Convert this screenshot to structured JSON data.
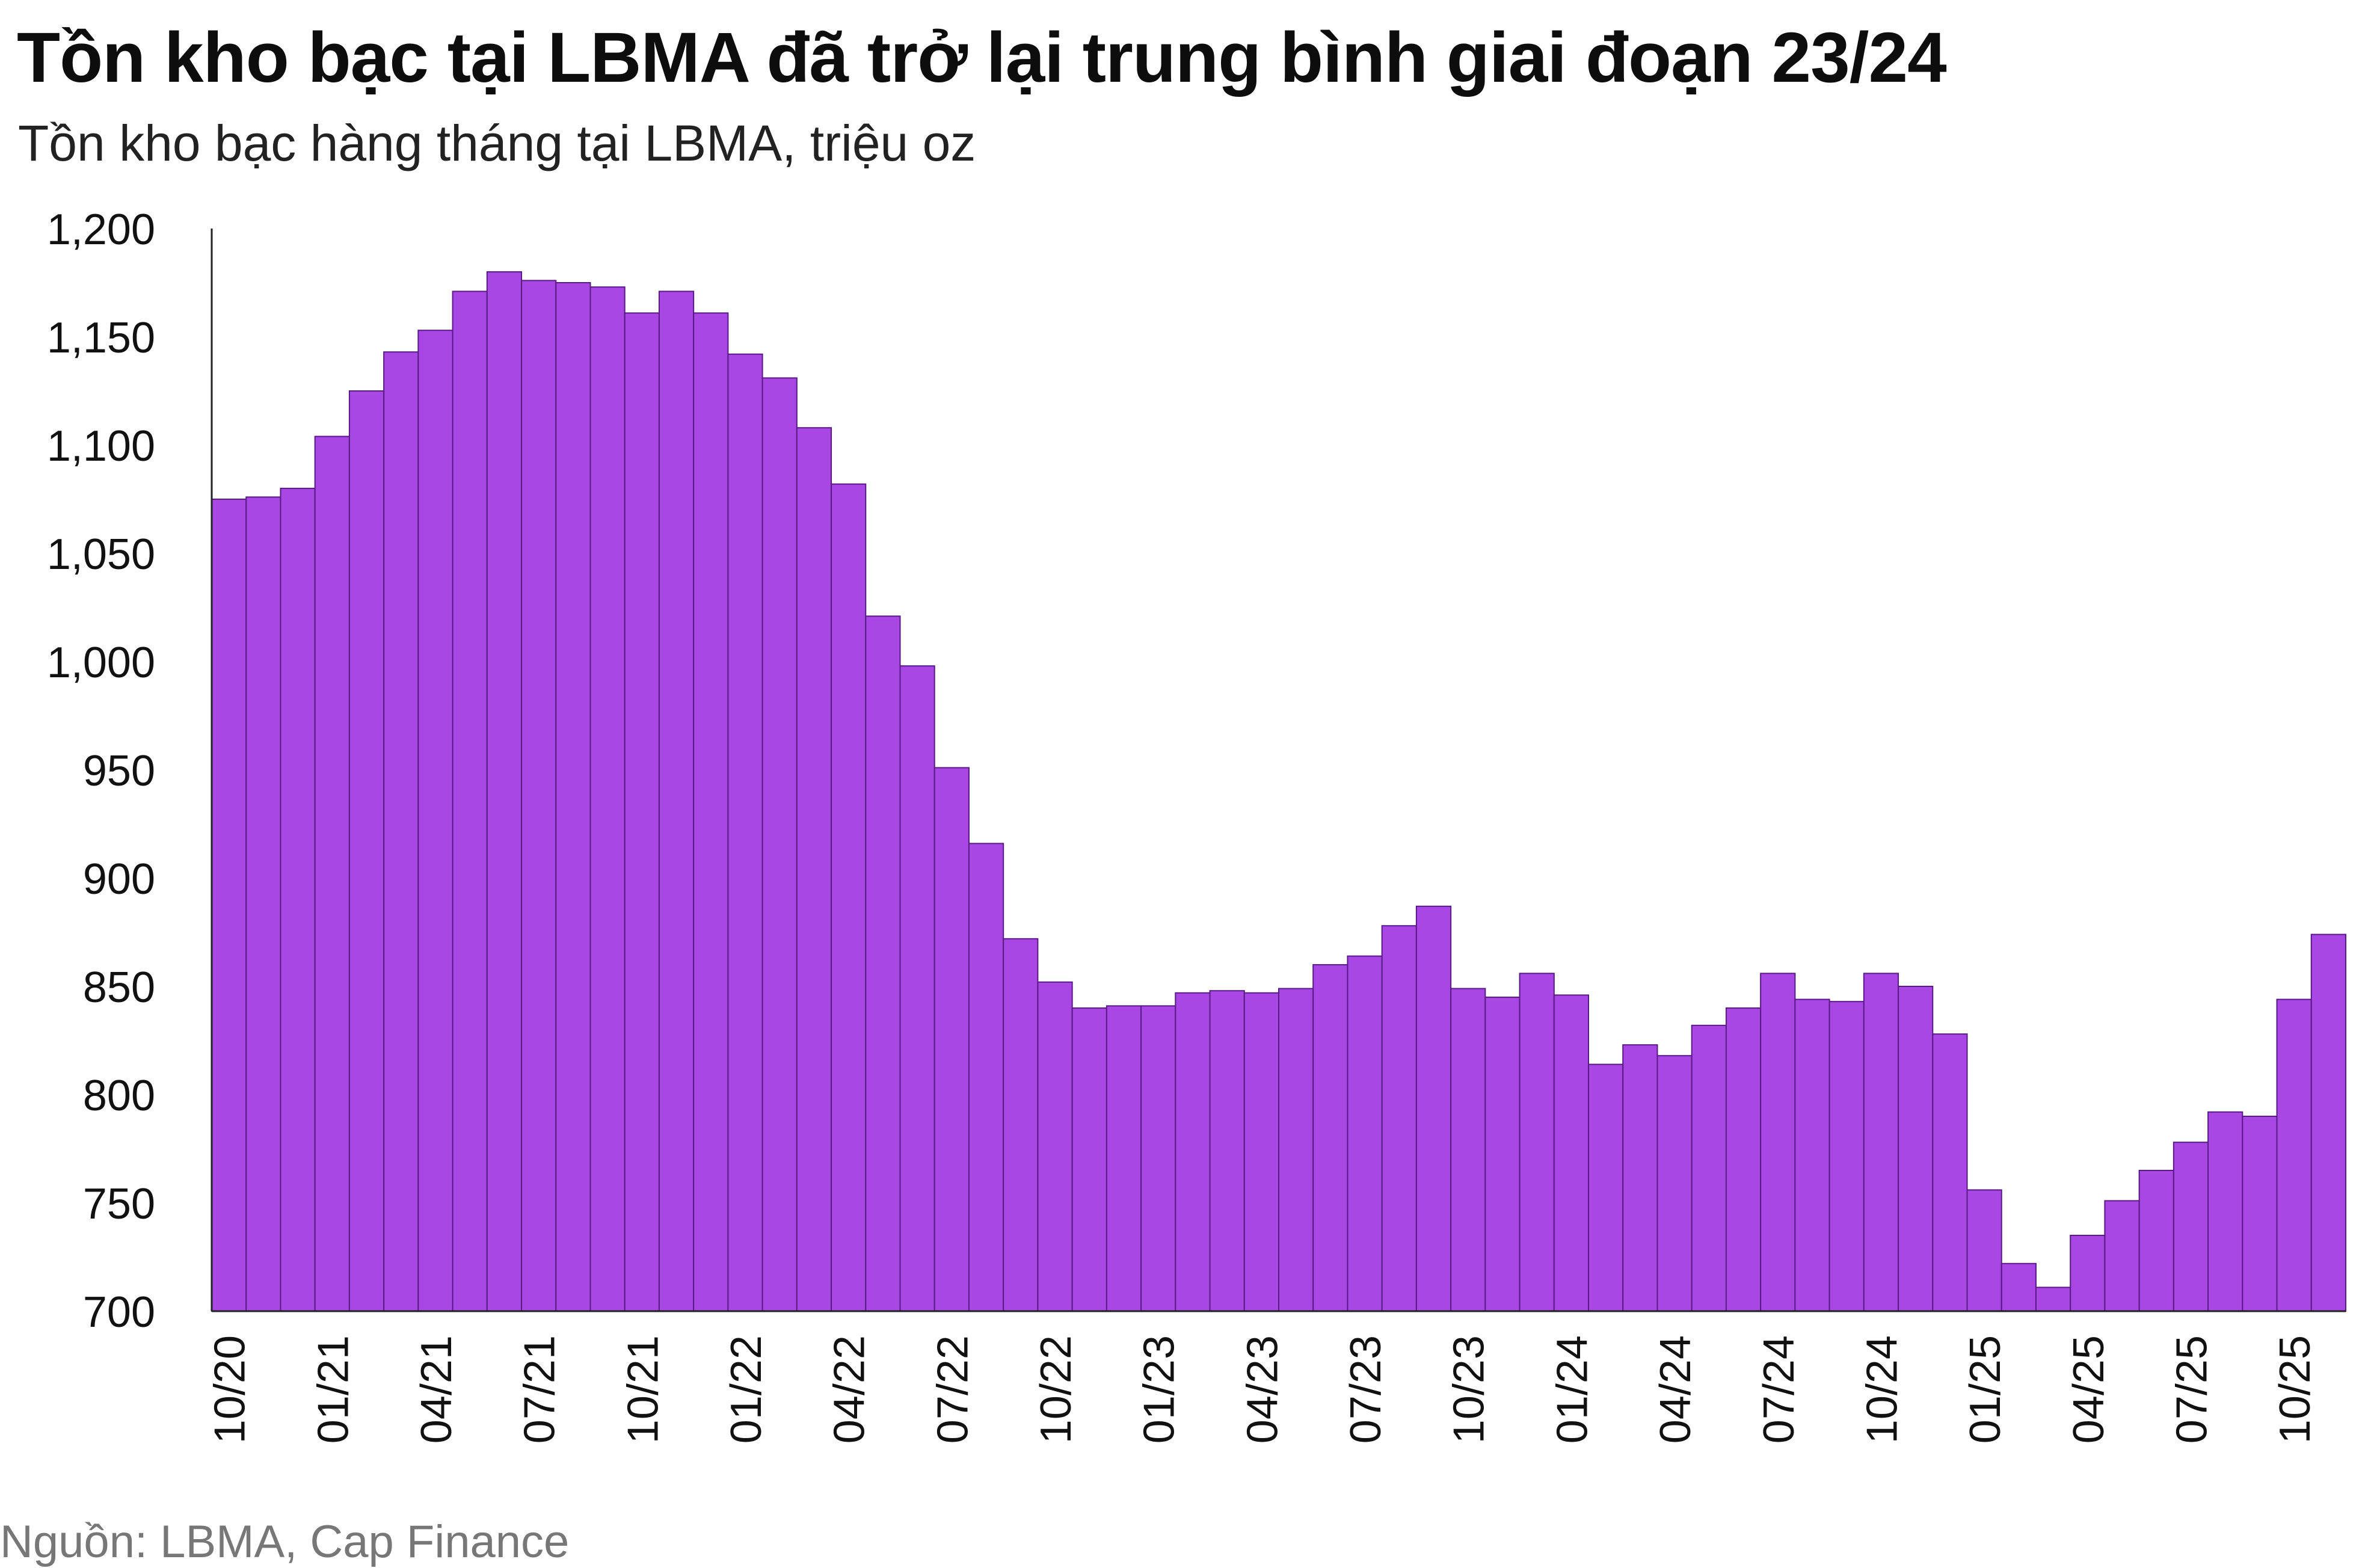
{
  "chart_data": {
    "type": "bar",
    "title": "Tồn kho bạc tại LBMA đã trở lại trung bình giai đoạn 23/24",
    "subtitle": "Tồn kho bạc hàng tháng tại LBMA, triệu oz",
    "source": "Nguồn: LBMA, Cap Finance",
    "xlabel": "",
    "ylabel": "",
    "ylim": [
      700,
      1200
    ],
    "yticks": [
      "1,200",
      "1,150",
      "1,100",
      "1,050",
      "1,000",
      "950",
      "900",
      "850",
      "800",
      "750",
      "700"
    ],
    "ytick_values": [
      1200,
      1150,
      1100,
      1050,
      1000,
      950,
      900,
      850,
      800,
      750,
      700
    ],
    "xtick_labels": [
      "10/20",
      "01/21",
      "04/21",
      "07/21",
      "10/21",
      "01/22",
      "04/22",
      "07/22",
      "10/22",
      "01/23",
      "04/23",
      "07/23",
      "10/23",
      "01/24",
      "04/24",
      "07/24",
      "10/24",
      "01/25",
      "04/25",
      "07/25",
      "10/25"
    ],
    "xtick_every": 3,
    "grid": false,
    "bar_color": "#a847e3",
    "bar_edge_color": "#5a1a86",
    "categories": [
      "10/20",
      "11/20",
      "12/20",
      "01/21",
      "02/21",
      "03/21",
      "04/21",
      "05/21",
      "06/21",
      "07/21",
      "08/21",
      "09/21",
      "10/21",
      "11/21",
      "12/21",
      "01/22",
      "02/22",
      "03/22",
      "04/22",
      "05/22",
      "06/22",
      "07/22",
      "08/22",
      "09/22",
      "10/22",
      "11/22",
      "12/22",
      "01/23",
      "02/23",
      "03/23",
      "04/23",
      "05/23",
      "06/23",
      "07/23",
      "08/23",
      "09/23",
      "10/23",
      "11/23",
      "12/23",
      "01/24",
      "02/24",
      "03/24",
      "04/24",
      "05/24",
      "06/24",
      "07/24",
      "08/24",
      "09/24",
      "10/24",
      "11/24",
      "12/24",
      "01/25",
      "02/25",
      "03/25",
      "04/25",
      "05/25",
      "06/25",
      "07/25",
      "08/25",
      "09/25",
      "10/25",
      "11/25"
    ],
    "values": [
      1075,
      1076,
      1080,
      1104,
      1125,
      1143,
      1153,
      1171,
      1180,
      1176,
      1175,
      1173,
      1161,
      1171,
      1161,
      1142,
      1131,
      1108,
      1082,
      1021,
      998,
      951,
      916,
      872,
      852,
      840,
      841,
      841,
      847,
      848,
      847,
      849,
      860,
      864,
      878,
      887,
      849,
      845,
      856,
      846,
      814,
      823,
      818,
      832,
      840,
      856,
      844,
      843,
      856,
      850,
      828,
      756,
      722,
      711,
      735,
      751,
      765,
      778,
      792,
      790,
      844,
      874
    ]
  }
}
